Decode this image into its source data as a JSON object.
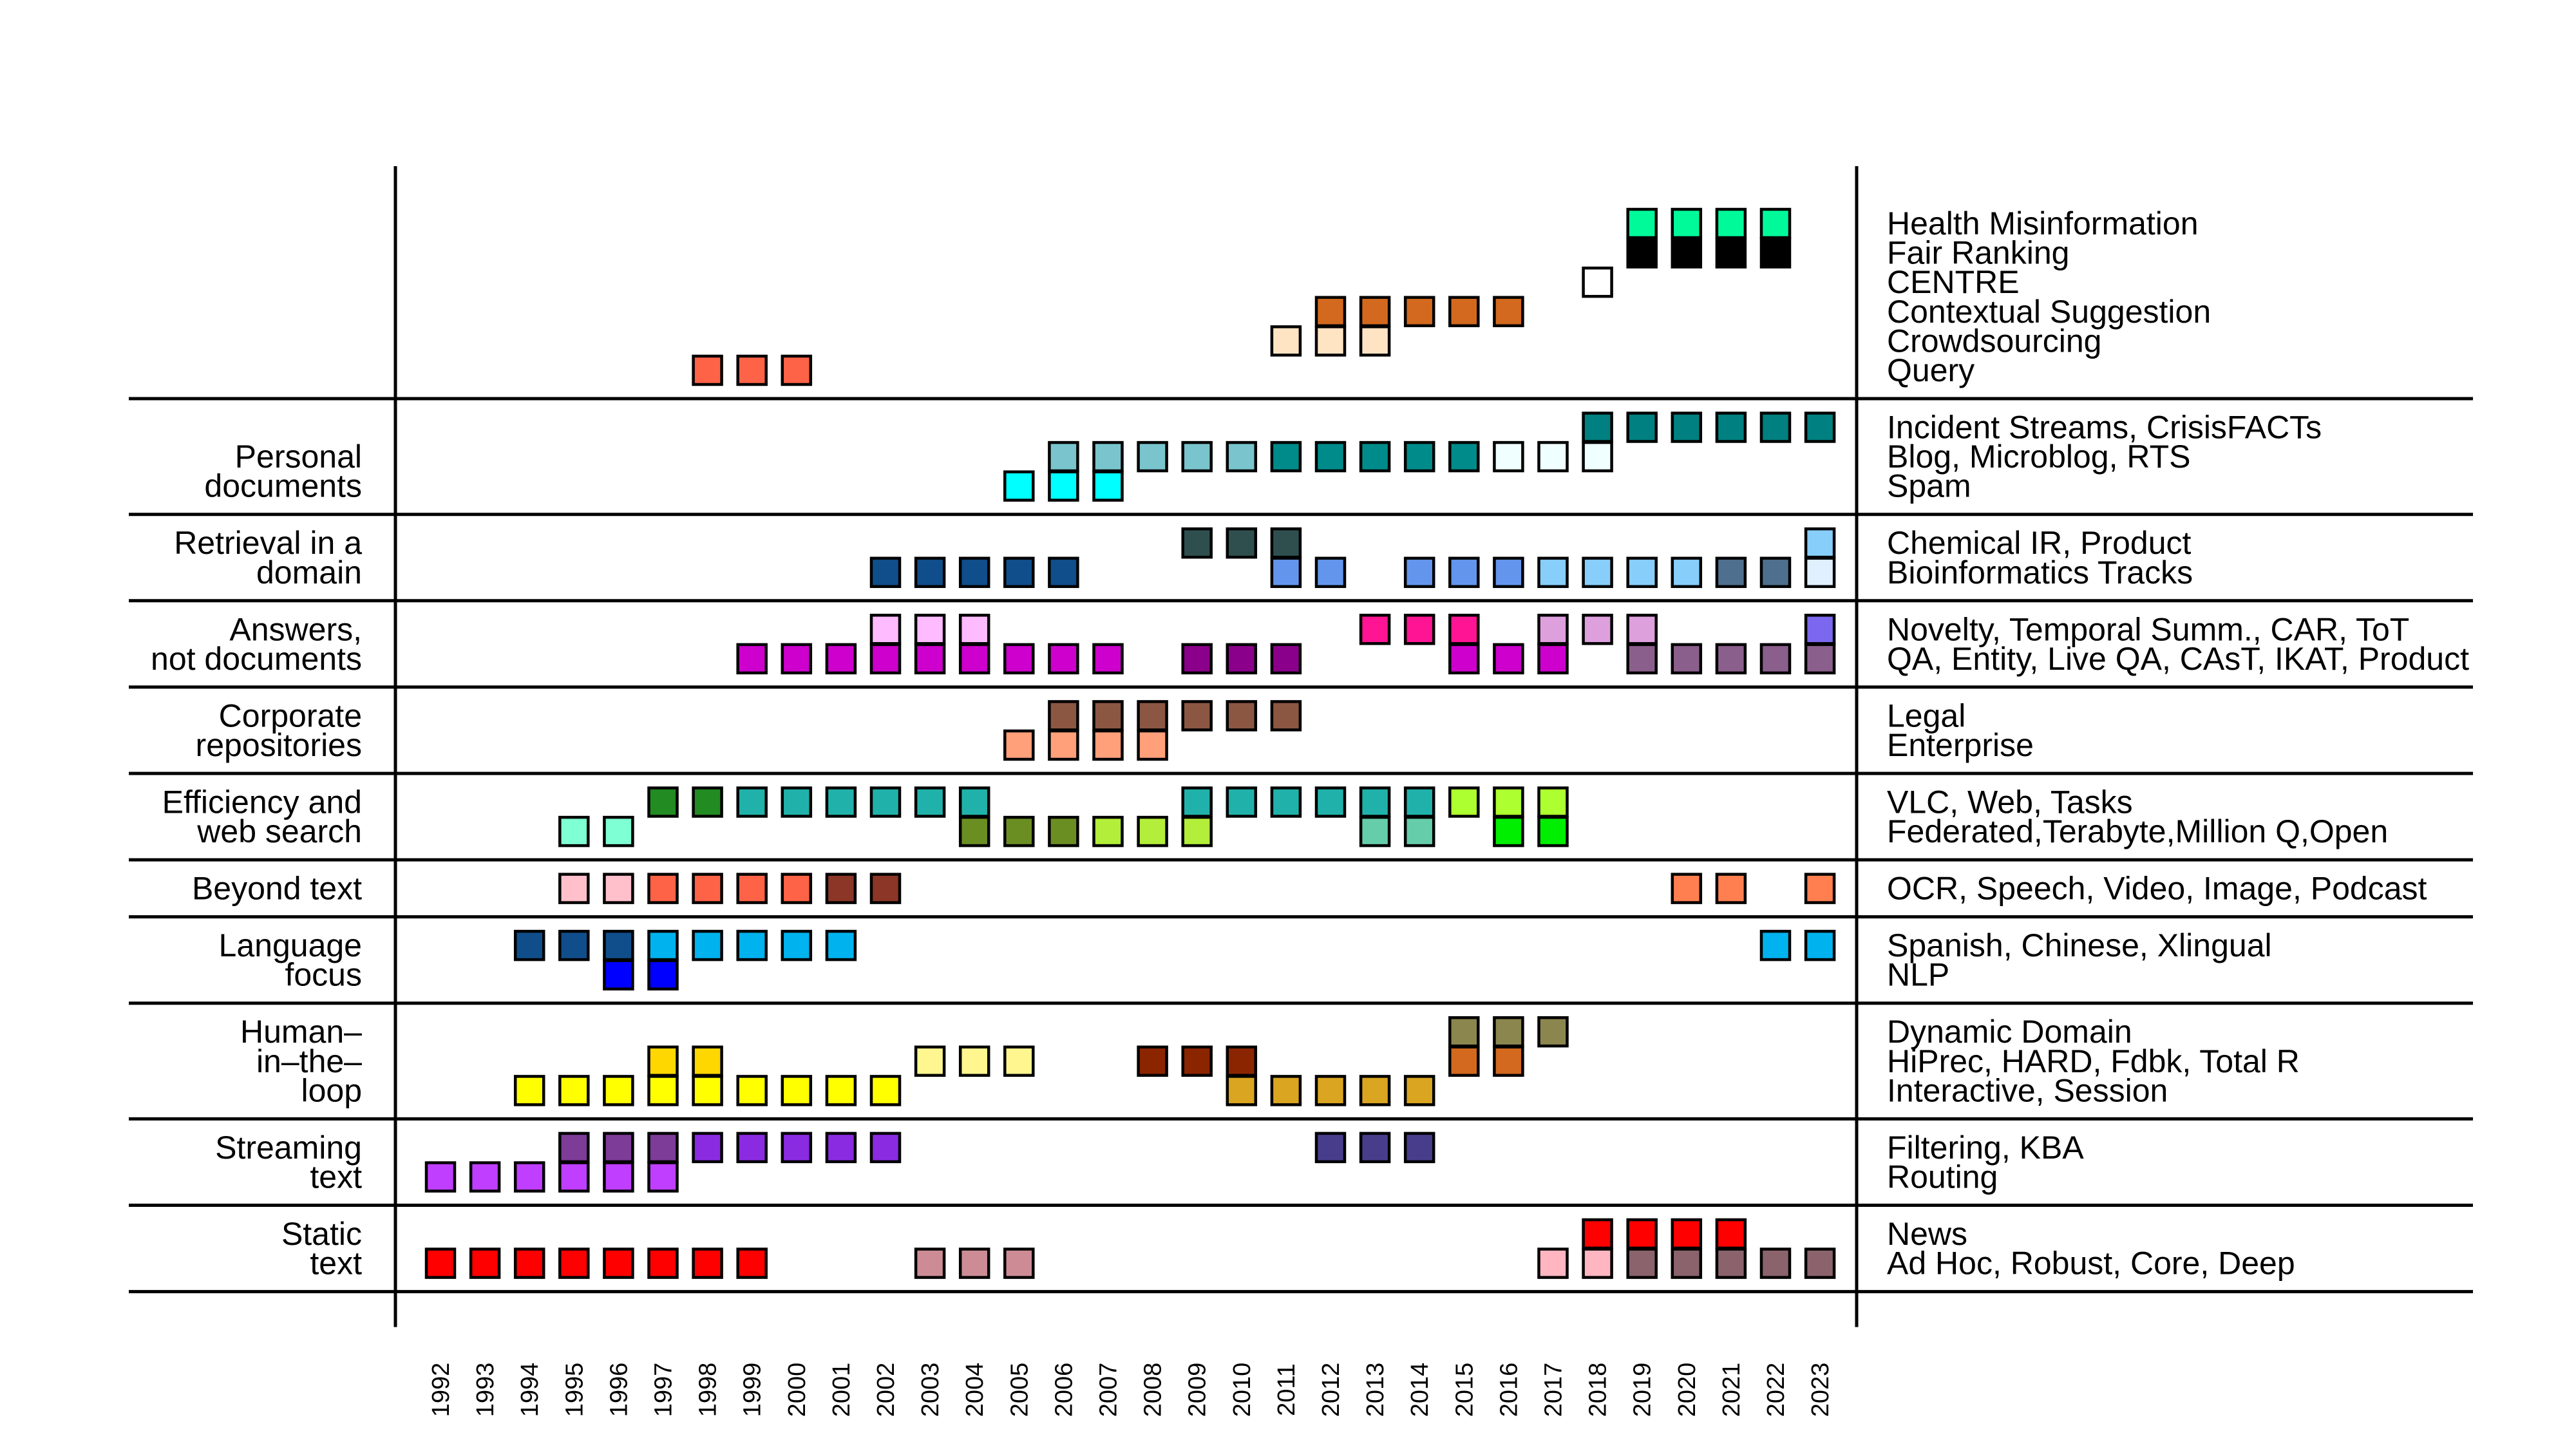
{
  "chart_data": {
    "type": "timeline",
    "x": [
      1992,
      1993,
      1994,
      1995,
      1996,
      1997,
      1998,
      1999,
      2000,
      2001,
      2002,
      2003,
      2004,
      2005,
      2006,
      2007,
      2008,
      2009,
      2010,
      2011,
      2012,
      2013,
      2014,
      2015,
      2016,
      2017,
      2018,
      2019,
      2020,
      2021,
      2022,
      2023
    ],
    "x_tick_labels": [
      "1992",
      "1993",
      "1994",
      "1995",
      "1996",
      "1997",
      "1998",
      "1999",
      "2000",
      "2001",
      "2002",
      "2003",
      "2004",
      "2005",
      "2006",
      "2007",
      "2008",
      "2009",
      "2010",
      "2011",
      "2012",
      "2013",
      "2014",
      "2015",
      "2016",
      "2017",
      "2018",
      "2019",
      "2020",
      "2021",
      "2022",
      "2023"
    ],
    "groups": [
      {
        "category": [],
        "rows": [
          {
            "label": "Health Misinformation",
            "marks": [
              {
                "years": [
                  2019,
                  2020,
                  2021,
                  2022
                ],
                "color": "#00fa9a"
              }
            ]
          },
          {
            "label": "Fair Ranking",
            "marks": [
              {
                "years": [
                  2019,
                  2020,
                  2021,
                  2022
                ],
                "color": "#000000"
              }
            ]
          },
          {
            "label": "CENTRE",
            "marks": [
              {
                "years": [
                  2018
                ],
                "color": "#ffffff"
              }
            ]
          },
          {
            "label": "Contextual Suggestion",
            "marks": [
              {
                "years": [
                  2012,
                  2013,
                  2014,
                  2015,
                  2016
                ],
                "color": "#d2691e"
              }
            ]
          },
          {
            "label": "Crowdsourcing",
            "marks": [
              {
                "years": [
                  2011,
                  2012,
                  2013
                ],
                "color": "#ffe4c4"
              }
            ]
          },
          {
            "label": "Query",
            "marks": [
              {
                "years": [
                  1998,
                  1999,
                  2000
                ],
                "color": "#ff6347"
              }
            ]
          }
        ]
      },
      {
        "category": [
          "Personal",
          "documents"
        ],
        "rows": [
          {
            "label": "Incident Streams, CrisisFACTs",
            "marks": [
              {
                "years": [
                  2018,
                  2019,
                  2020,
                  2021,
                  2022,
                  2023
                ],
                "color": "#008080"
              }
            ]
          },
          {
            "label": "Blog, Microblog, RTS",
            "marks": [
              {
                "years": [
                  2006,
                  2007,
                  2008,
                  2009,
                  2010
                ],
                "color": "#7ac5cd"
              },
              {
                "years": [
                  2011,
                  2012,
                  2013,
                  2014,
                  2015
                ],
                "color": "#008b8b"
              },
              {
                "years": [
                  2016,
                  2017,
                  2018
                ],
                "color": "#f0ffff"
              }
            ]
          },
          {
            "label": "Spam",
            "marks": [
              {
                "years": [
                  2005,
                  2006,
                  2007
                ],
                "color": "#00ffff"
              }
            ]
          }
        ]
      },
      {
        "category": [
          "Retrieval in a",
          "domain"
        ],
        "rows": [
          {
            "label": "Chemical IR, Product",
            "marks": [
              {
                "years": [
                  2009,
                  2010,
                  2011
                ],
                "color": "#2f4f4f"
              },
              {
                "years": [
                  2023
                ],
                "color": "#87cefa"
              }
            ]
          },
          {
            "label": "Bioinformatics Tracks",
            "marks": [
              {
                "years": [
                  2002,
                  2003,
                  2004,
                  2005,
                  2006
                ],
                "color": "#104e8b"
              },
              {
                "years": [
                  2011,
                  2012,
                  2014,
                  2015,
                  2016
                ],
                "color": "#6495ed"
              },
              {
                "years": [
                  2017,
                  2018,
                  2019,
                  2020
                ],
                "color": "#87cefa"
              },
              {
                "years": [
                  2021,
                  2022
                ],
                "color": "#4f6f8f"
              },
              {
                "years": [
                  2023
                ],
                "color": "#e0f0ff"
              }
            ]
          }
        ]
      },
      {
        "category": [
          "Answers,",
          "not documents"
        ],
        "rows": [
          {
            "label": "Novelty, Temporal Summ., CAR, ToT",
            "marks": [
              {
                "years": [
                  2002,
                  2003,
                  2004
                ],
                "color": "#ffbbff"
              },
              {
                "years": [
                  2013,
                  2014,
                  2015
                ],
                "color": "#ff1493"
              },
              {
                "years": [
                  2017,
                  2018,
                  2019
                ],
                "color": "#dda0dd"
              },
              {
                "years": [
                  2023
                ],
                "color": "#7b68ee"
              }
            ]
          },
          {
            "label": "QA, Entity, Live QA, CAsT, IKAT, Product",
            "marks": [
              {
                "years": [
                  1999,
                  2000,
                  2001,
                  2002,
                  2003,
                  2004,
                  2005,
                  2006,
                  2007
                ],
                "color": "#cd00cd"
              },
              {
                "years": [
                  2009,
                  2010,
                  2011
                ],
                "color": "#8b008b"
              },
              {
                "years": [
                  2015,
                  2016,
                  2017
                ],
                "color": "#cd00cd"
              },
              {
                "years": [
                  2019,
                  2020,
                  2021,
                  2022,
                  2023
                ],
                "color": "#8b5f8b"
              }
            ]
          }
        ]
      },
      {
        "category": [
          "Corporate",
          "repositories"
        ],
        "rows": [
          {
            "label": "Legal",
            "marks": [
              {
                "years": [
                  2006,
                  2007,
                  2008,
                  2009,
                  2010,
                  2011
                ],
                "color": "#8b5742"
              }
            ]
          },
          {
            "label": "Enterprise",
            "marks": [
              {
                "years": [
                  2005,
                  2006,
                  2007,
                  2008
                ],
                "color": "#ffa07a"
              }
            ]
          }
        ]
      },
      {
        "category": [
          "Efficiency and",
          "web search"
        ],
        "rows": [
          {
            "label": "VLC, Web, Tasks",
            "marks": [
              {
                "years": [
                  1997,
                  1998
                ],
                "color": "#228b22"
              },
              {
                "years": [
                  1999,
                  2000,
                  2001,
                  2002,
                  2003,
                  2004,
                  2009,
                  2010,
                  2011,
                  2012,
                  2013,
                  2014
                ],
                "color": "#20b2aa"
              },
              {
                "years": [
                  2015,
                  2016,
                  2017
                ],
                "color": "#adff2f"
              }
            ]
          },
          {
            "label": "Federated,Terabyte,Million Q,Open",
            "marks": [
              {
                "years": [
                  1995,
                  1996
                ],
                "color": "#7fffd4"
              },
              {
                "years": [
                  2004,
                  2005,
                  2006
                ],
                "color": "#6b8e23"
              },
              {
                "years": [
                  2007,
                  2008,
                  2009
                ],
                "color": "#b3ee3a"
              },
              {
                "years": [
                  2013,
                  2014
                ],
                "color": "#66cdaa"
              },
              {
                "years": [
                  2016,
                  2017
                ],
                "color": "#00ee00"
              }
            ]
          }
        ]
      },
      {
        "category": [
          "Beyond text"
        ],
        "rows": [
          {
            "label": "OCR, Speech, Video, Image, Podcast",
            "marks": [
              {
                "years": [
                  1995,
                  1996
                ],
                "color": "#ffc0cb"
              },
              {
                "years": [
                  1997,
                  1998,
                  1999,
                  2000
                ],
                "color": "#ff6347"
              },
              {
                "years": [
                  2001,
                  2002
                ],
                "color": "#8b3626"
              },
              {
                "years": [
                  2020,
                  2021,
                  2023
                ],
                "color": "#ff7f50"
              }
            ]
          }
        ]
      },
      {
        "category": [
          "Language",
          "focus"
        ],
        "rows": [
          {
            "label": "Spanish, Chinese, Xlingual",
            "marks": [
              {
                "years": [
                  1994,
                  1995,
                  1996
                ],
                "color": "#104e8b"
              },
              {
                "years": [
                  1997,
                  1998,
                  1999,
                  2000,
                  2001,
                  2022,
                  2023
                ],
                "color": "#00b2ee"
              }
            ]
          },
          {
            "label": "NLP",
            "marks": [
              {
                "years": [
                  1996,
                  1997
                ],
                "color": "#0000ff"
              }
            ]
          }
        ]
      },
      {
        "category": [
          "Human–",
          "in–the–",
          "loop"
        ],
        "rows": [
          {
            "label": "Dynamic Domain",
            "marks": [
              {
                "years": [
                  2015,
                  2016,
                  2017
                ],
                "color": "#8b864e"
              }
            ]
          },
          {
            "label": "HiPrec, HARD, Fdbk, Total R",
            "marks": [
              {
                "years": [
                  1997,
                  1998
                ],
                "color": "#ffd700"
              },
              {
                "years": [
                  2003,
                  2004,
                  2005
                ],
                "color": "#fff68f"
              },
              {
                "years": [
                  2008,
                  2009,
                  2010
                ],
                "color": "#8b2500"
              },
              {
                "years": [
                  2015,
                  2016
                ],
                "color": "#d2691e"
              }
            ]
          },
          {
            "label": "Interactive, Session",
            "marks": [
              {
                "years": [
                  1994,
                  1995,
                  1996,
                  1997,
                  1998,
                  1999,
                  2000,
                  2001,
                  2002
                ],
                "color": "#ffff00"
              },
              {
                "years": [
                  2010,
                  2011,
                  2012,
                  2013,
                  2014
                ],
                "color": "#daa520"
              }
            ]
          }
        ]
      },
      {
        "category": [
          "Streaming",
          "text"
        ],
        "rows": [
          {
            "label": "Filtering, KBA",
            "marks": [
              {
                "years": [
                  1995,
                  1996,
                  1997
                ],
                "color": "#7d3c98"
              },
              {
                "years": [
                  1998,
                  1999,
                  2000,
                  2001,
                  2002
                ],
                "color": "#8a2be2"
              },
              {
                "years": [
                  2012,
                  2013,
                  2014
                ],
                "color": "#483d8b"
              }
            ]
          },
          {
            "label": "Routing",
            "marks": [
              {
                "years": [
                  1992,
                  1993,
                  1994,
                  1995,
                  1996,
                  1997
                ],
                "color": "#bf3eff"
              }
            ]
          }
        ]
      },
      {
        "category": [
          "Static",
          "text"
        ],
        "rows": [
          {
            "label": "News",
            "marks": [
              {
                "years": [
                  2018,
                  2019,
                  2020,
                  2021
                ],
                "color": "#ff0000"
              }
            ]
          },
          {
            "label": "Ad Hoc, Robust, Core, Deep",
            "marks": [
              {
                "years": [
                  1992,
                  1993,
                  1994,
                  1995,
                  1996,
                  1997,
                  1998,
                  1999
                ],
                "color": "#ff0000"
              },
              {
                "years": [
                  2003,
                  2004,
                  2005
                ],
                "color": "#cd8c95"
              },
              {
                "years": [
                  2017,
                  2018
                ],
                "color": "#ffb6c1"
              },
              {
                "years": [
                  2019,
                  2020,
                  2021,
                  2022,
                  2023
                ],
                "color": "#8b636c"
              }
            ]
          }
        ]
      }
    ]
  }
}
